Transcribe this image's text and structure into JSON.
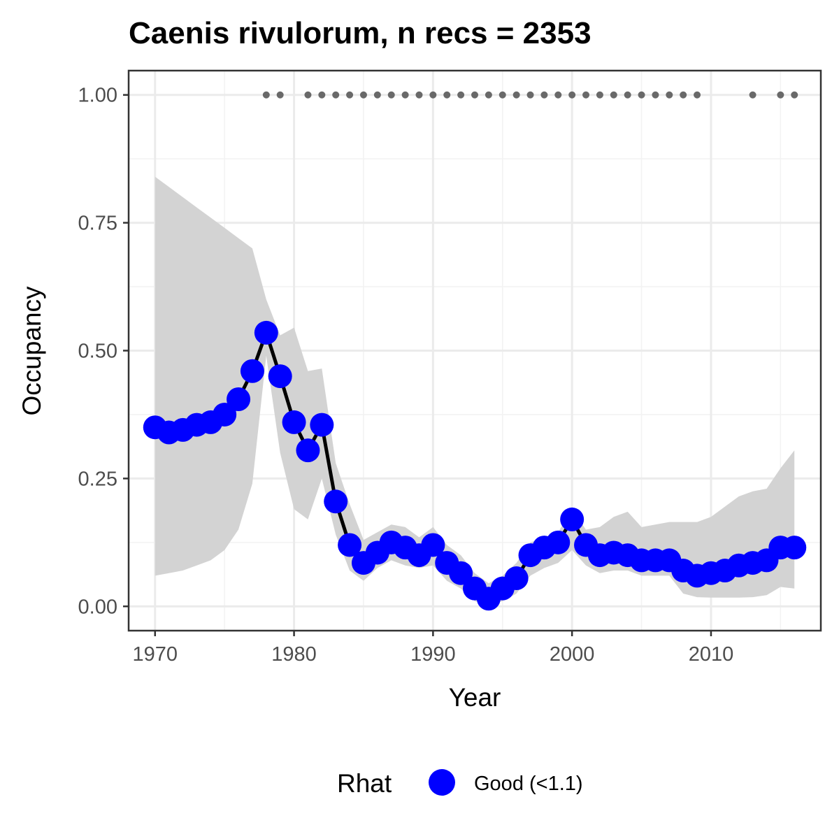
{
  "chart_data": {
    "type": "line",
    "title": "Caenis rivulorum, n recs = 2353",
    "xlabel": "Year",
    "ylabel": "Occupancy",
    "xlim": [
      1968.1,
      2017.9
    ],
    "ylim": [
      -0.0475,
      1.0475
    ],
    "x_ticks": [
      1970,
      1980,
      1990,
      2000,
      2010
    ],
    "x_tick_labels": [
      "1970",
      "1980",
      "1990",
      "2000",
      "2010"
    ],
    "y_ticks": [
      0,
      0.25,
      0.5,
      0.75,
      1.0
    ],
    "y_tick_labels": [
      "0.00",
      "0.25",
      "0.50",
      "0.75",
      "1.00"
    ],
    "grid": true,
    "x": [
      1970,
      1971,
      1972,
      1973,
      1974,
      1975,
      1976,
      1977,
      1978,
      1979,
      1980,
      1981,
      1982,
      1983,
      1984,
      1985,
      1986,
      1987,
      1988,
      1989,
      1990,
      1991,
      1992,
      1993,
      1994,
      1995,
      1996,
      1997,
      1998,
      1999,
      2000,
      2001,
      2002,
      2003,
      2004,
      2005,
      2006,
      2007,
      2008,
      2009,
      2010,
      2011,
      2012,
      2013,
      2014,
      2015,
      2016
    ],
    "series": [
      {
        "name": "Good (<1.1)",
        "color": "#0000ff",
        "values": [
          0.35,
          0.34,
          0.345,
          0.355,
          0.36,
          0.375,
          0.405,
          0.46,
          0.535,
          0.45,
          0.36,
          0.305,
          0.355,
          0.205,
          0.12,
          0.085,
          0.105,
          0.125,
          0.115,
          0.1,
          0.12,
          0.085,
          0.065,
          0.035,
          0.015,
          0.035,
          0.055,
          0.1,
          0.115,
          0.125,
          0.17,
          0.12,
          0.1,
          0.105,
          0.1,
          0.09,
          0.09,
          0.09,
          0.07,
          0.06,
          0.065,
          0.07,
          0.08,
          0.085,
          0.09,
          0.115,
          0.115
        ]
      }
    ],
    "ci_lower": [
      0.06,
      0.065,
      0.07,
      0.08,
      0.09,
      0.11,
      0.15,
      0.24,
      0.49,
      0.3,
      0.19,
      0.17,
      0.25,
      0.14,
      0.07,
      0.05,
      0.075,
      0.09,
      0.08,
      0.075,
      0.08,
      0.05,
      0.035,
      0.01,
      0.003,
      0.01,
      0.025,
      0.06,
      0.075,
      0.085,
      0.11,
      0.08,
      0.065,
      0.07,
      0.07,
      0.06,
      0.06,
      0.06,
      0.025,
      0.018,
      0.017,
      0.017,
      0.017,
      0.018,
      0.022,
      0.038,
      0.035
    ],
    "ci_upper": [
      0.84,
      0.82,
      0.8,
      0.78,
      0.76,
      0.74,
      0.72,
      0.7,
      0.6,
      0.53,
      0.545,
      0.46,
      0.465,
      0.28,
      0.2,
      0.13,
      0.145,
      0.16,
      0.155,
      0.135,
      0.155,
      0.12,
      0.1,
      0.065,
      0.045,
      0.06,
      0.085,
      0.125,
      0.135,
      0.145,
      0.19,
      0.15,
      0.155,
      0.175,
      0.185,
      0.155,
      0.16,
      0.165,
      0.165,
      0.165,
      0.175,
      0.195,
      0.215,
      0.225,
      0.23,
      0.27,
      0.305
    ],
    "ci_color": "#d3d3d3",
    "line_color": "#000000",
    "record_years": [
      1978,
      1979,
      1981,
      1982,
      1983,
      1984,
      1985,
      1986,
      1987,
      1988,
      1989,
      1990,
      1991,
      1992,
      1993,
      1994,
      1995,
      1996,
      1997,
      1998,
      1999,
      2000,
      2001,
      2002,
      2003,
      2004,
      2005,
      2006,
      2007,
      2008,
      2009,
      2013,
      2015,
      2016
    ],
    "record_y": 1.0,
    "record_color": "#696969",
    "legend": {
      "title": "Rhat",
      "placement": "bottom",
      "entries": [
        {
          "label": "Good (<1.1)",
          "color": "#0000ff"
        }
      ]
    }
  }
}
